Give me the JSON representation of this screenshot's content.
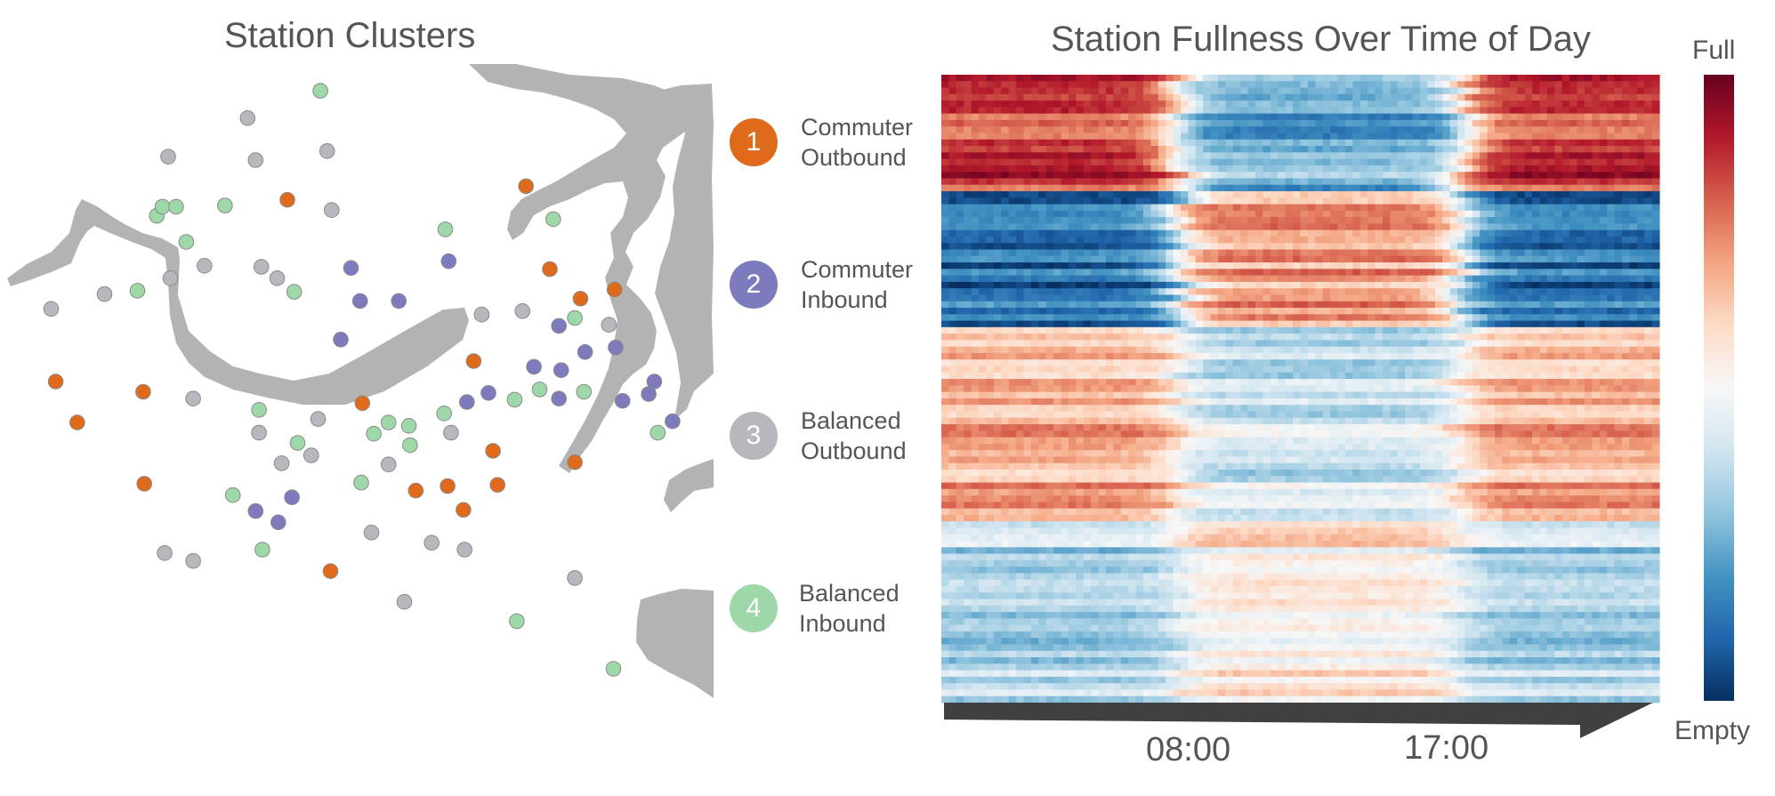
{
  "left_panel": {
    "title": "Station Clusters"
  },
  "clusters": [
    {
      "id": "1",
      "lines": [
        "Commuter",
        "Outbound"
      ],
      "color": "#e06a1b"
    },
    {
      "id": "2",
      "lines": [
        "Commuter",
        "Inbound"
      ],
      "color": "#7d7abd"
    },
    {
      "id": "3",
      "lines": [
        "Balanced",
        "Outbound"
      ],
      "color": "#b7b7bd"
    },
    {
      "id": "4",
      "lines": [
        "Balanced",
        "Inbound"
      ],
      "color": "#9fd8a8"
    }
  ],
  "colorbar": {
    "top_label": "Full",
    "bottom_label": "Empty"
  },
  "chart_data": [
    {
      "type": "scatter",
      "title": "Station Clusters",
      "xlabel": "",
      "ylabel": "",
      "grid": false,
      "legend": "right",
      "series": [
        {
          "name": "Commuter Outbound",
          "cluster": 1,
          "x": [
            463,
            253,
            484,
            511,
            541,
            417,
            319,
            127,
            68,
            49,
            126,
            434,
            366,
            394,
            438,
            408,
            506,
            291
          ],
          "y": [
            164,
            176,
            237,
            263,
            255,
            318,
            355,
            426,
            372,
            336,
            345,
            397,
            432,
            428,
            427,
            449,
            407,
            503
          ]
        },
        {
          "name": "Commuter Inbound",
          "cluster": 2,
          "x": [
            309,
            395,
            317,
            351,
            300,
            492,
            515,
            542,
            470,
            494,
            492,
            430,
            411,
            576,
            571,
            548,
            592,
            257,
            225,
            245
          ],
          "y": [
            236,
            230,
            265,
            265,
            299,
            287,
            310,
            306,
            323,
            326,
            351,
            346,
            354,
            336,
            347,
            353,
            371,
            438,
            450,
            460
          ]
        },
        {
          "name": "Balanced Outbound",
          "cluster": 3,
          "x": [
            218,
            148,
            225,
            288,
            292,
            180,
            230,
            244,
            150,
            92,
            45,
            424,
            460,
            536,
            170,
            228,
            280,
            248,
            274,
            342,
            397,
            327,
            380,
            409,
            145,
            170,
            356,
            506
          ],
          "y": [
            104,
            138,
            141,
            133,
            185,
            234,
            235,
            245,
            245,
            259,
            272,
            277,
            274,
            286,
            351,
            381,
            369,
            408,
            401,
            409,
            381,
            469,
            478,
            484,
            487,
            494,
            530,
            509
          ]
        },
        {
          "name": "Balanced Inbound",
          "cluster": 4,
          "x": [
            282,
            138,
            143,
            155,
            198,
            164,
            121,
            259,
            392,
            487,
            506,
            514,
            475,
            453,
            391,
            228,
            262,
            329,
            342,
            360,
            361,
            318,
            205,
            231,
            579,
            455,
            540
          ],
          "y": [
            80,
            190,
            182,
            182,
            181,
            213,
            256,
            257,
            202,
            193,
            280,
            345,
            343,
            352,
            364,
            361,
            390,
            382,
            372,
            375,
            392,
            425,
            436,
            484,
            381,
            547,
            589
          ]
        }
      ]
    },
    {
      "type": "heatmap",
      "title": "Station Fullness Over Time of Day",
      "xlabel": "",
      "ylabel": "",
      "x_ticks": [
        "08:00",
        "17:00"
      ],
      "colorbar": {
        "min_label": "Empty",
        "max_label": "Full",
        "colors": [
          "#053061",
          "#2166ac",
          "#4393c3",
          "#92c5de",
          "#d1e5f0",
          "#f7f7f7",
          "#fddbc7",
          "#f4a582",
          "#d6604d",
          "#b2182b",
          "#67001f"
        ]
      },
      "row_groups": [
        {
          "cluster": 1,
          "rows": 18,
          "night": 0.85,
          "day": 0.25
        },
        {
          "cluster": 2,
          "rows": 21,
          "night": 0.12,
          "day": 0.7
        },
        {
          "cluster": 3,
          "rows": 30,
          "night": 0.68,
          "day": 0.4
        },
        {
          "cluster": 4,
          "rows": 28,
          "night": 0.36,
          "day": 0.56
        }
      ]
    }
  ]
}
